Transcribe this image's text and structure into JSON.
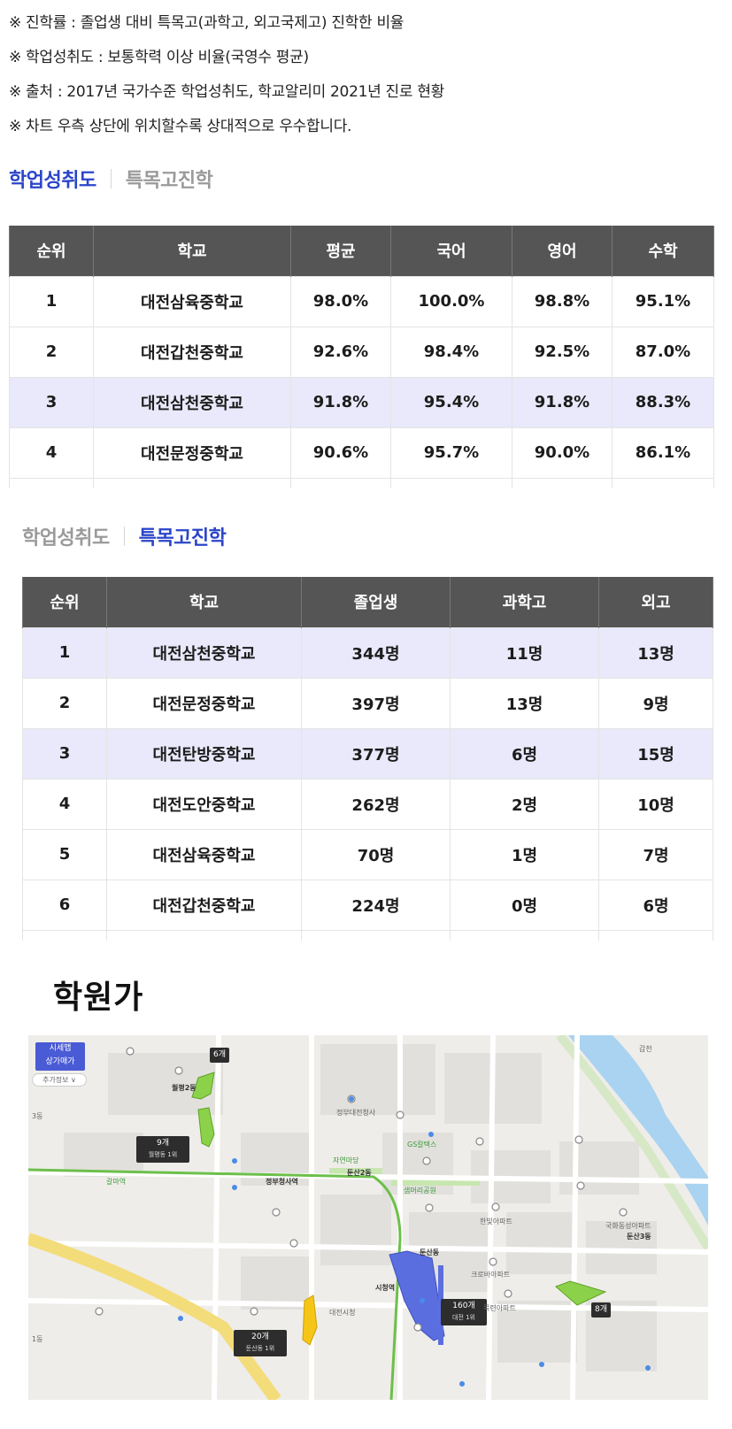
{
  "notes": [
    "※ 진학률 : 졸업생 대비 특목고(과학고, 외고국제고) 진학한 비율",
    "※ 학업성취도 : 보통학력 이상 비율(국영수 평균)",
    "※ 출처 : 2017년 국가수준 학업성취도, 학교알리미 2021년 진로 현황",
    "※ 차트 우측 상단에 위치할수록 상대적으로 우수합니다."
  ],
  "tabs1": {
    "achievement": "학업성취도",
    "special": "특목고진학",
    "active": "achievement"
  },
  "table1": {
    "headers": [
      "순위",
      "학교",
      "평균",
      "국어",
      "영어",
      "수학"
    ],
    "rows": [
      [
        "1",
        "대전삼육중학교",
        "98.0%",
        "100.0%",
        "98.8%",
        "95.1%"
      ],
      [
        "2",
        "대전갑천중학교",
        "92.6%",
        "98.4%",
        "92.5%",
        "87.0%"
      ],
      [
        "3",
        "대전삼천중학교",
        "91.8%",
        "95.4%",
        "91.8%",
        "88.3%"
      ],
      [
        "4",
        "대전문정중학교",
        "90.6%",
        "95.7%",
        "90.0%",
        "86.1%"
      ]
    ],
    "highlight_row": 3
  },
  "tabs2": {
    "achievement": "학업성취도",
    "special": "특목고진학",
    "active": "special"
  },
  "table2": {
    "headers": [
      "순위",
      "학교",
      "졸업생",
      "과학고",
      "외고"
    ],
    "rows": [
      [
        "1",
        "대전삼천중학교",
        "344명",
        "11명",
        "13명"
      ],
      [
        "2",
        "대전문정중학교",
        "397명",
        "13명",
        "9명"
      ],
      [
        "3",
        "대전탄방중학교",
        "377명",
        "6명",
        "15명"
      ],
      [
        "4",
        "대전도안중학교",
        "262명",
        "2명",
        "10명"
      ],
      [
        "5",
        "대전삼육중학교",
        "70명",
        "1명",
        "7명"
      ],
      [
        "6",
        "대전갑천중학교",
        "224명",
        "0명",
        "6명"
      ]
    ],
    "highlight_rows": [
      1,
      3
    ]
  },
  "academy": {
    "title": "학원가",
    "map": {
      "badge": "시세맵\n상가매가",
      "extra_info": "추가정보 ∨",
      "clusters": [
        {
          "count": "6개",
          "sub": ""
        },
        {
          "count": "9개",
          "sub": "월평동 1위"
        },
        {
          "count": "20개",
          "sub": "둔산동 1위"
        },
        {
          "count": "160개",
          "sub": "대전 1위"
        },
        {
          "count": "8개",
          "sub": ""
        }
      ],
      "places": [
        "월평2동",
        "둔산2동",
        "둔산동",
        "둔산3동",
        "시청역",
        "정부청사역",
        "갈마역",
        "정부대전청사",
        "샘머리공원",
        "GS칼텍스",
        "자연마당",
        "대전시청",
        "한빛아파트",
        "크로바아파트",
        "목련아파트",
        "국화동성아파트",
        "갑천",
        "1동",
        "3동"
      ],
      "colors": {
        "water": "#a9d3f0",
        "green_area": "#8cd14a",
        "blue_area": "#5b6ee0",
        "yellow_area": "#f5c518",
        "road_main": "#f3dc7a",
        "subway": "#6cc04a"
      }
    }
  }
}
